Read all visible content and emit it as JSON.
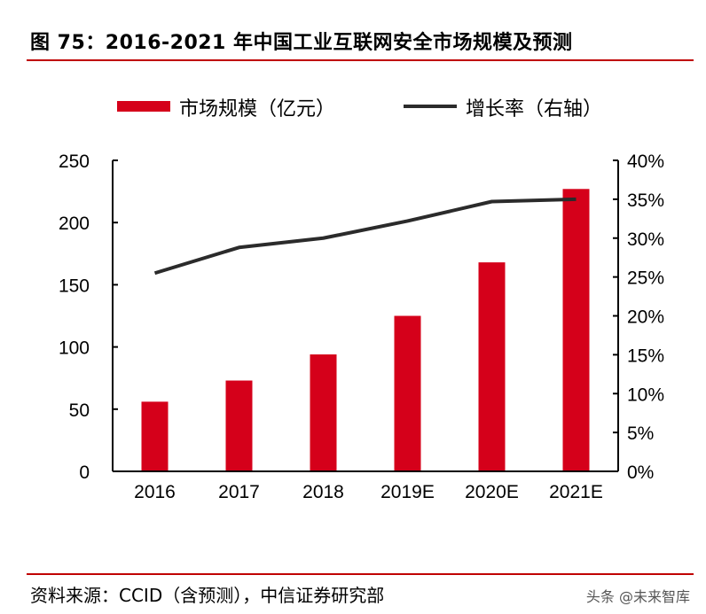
{
  "title": "图 75：2016-2021 年中国工业互联网安全市场规模及预测",
  "source": "资料来源：CCID（含预测），中信证券研究部",
  "watermark": "头条 @未来智库",
  "colors": {
    "bar": "#d5001a",
    "line": "#2b2b2b",
    "rule": "#c00000"
  },
  "chart_data": {
    "type": "bar+line",
    "categories": [
      "2016",
      "2017",
      "2018",
      "2019E",
      "2020E",
      "2021E"
    ],
    "series": [
      {
        "name": "市场规模（亿元）",
        "type": "bar",
        "axis": "left",
        "values": [
          56,
          73,
          94,
          125,
          168,
          227
        ]
      },
      {
        "name": "增长率（右轴）",
        "type": "line",
        "axis": "right",
        "values": [
          25.5,
          28.8,
          30.0,
          32.2,
          34.7,
          35.0
        ]
      }
    ],
    "left_axis": {
      "ylim": [
        0,
        250
      ],
      "ticks": [
        "0",
        "50",
        "100",
        "150",
        "200",
        "250"
      ]
    },
    "right_axis": {
      "ylim": [
        0,
        40
      ],
      "ticks": [
        "0%",
        "5%",
        "10%",
        "15%",
        "20%",
        "25%",
        "30%",
        "35%",
        "40%"
      ]
    },
    "legend": "top",
    "grid": false
  }
}
